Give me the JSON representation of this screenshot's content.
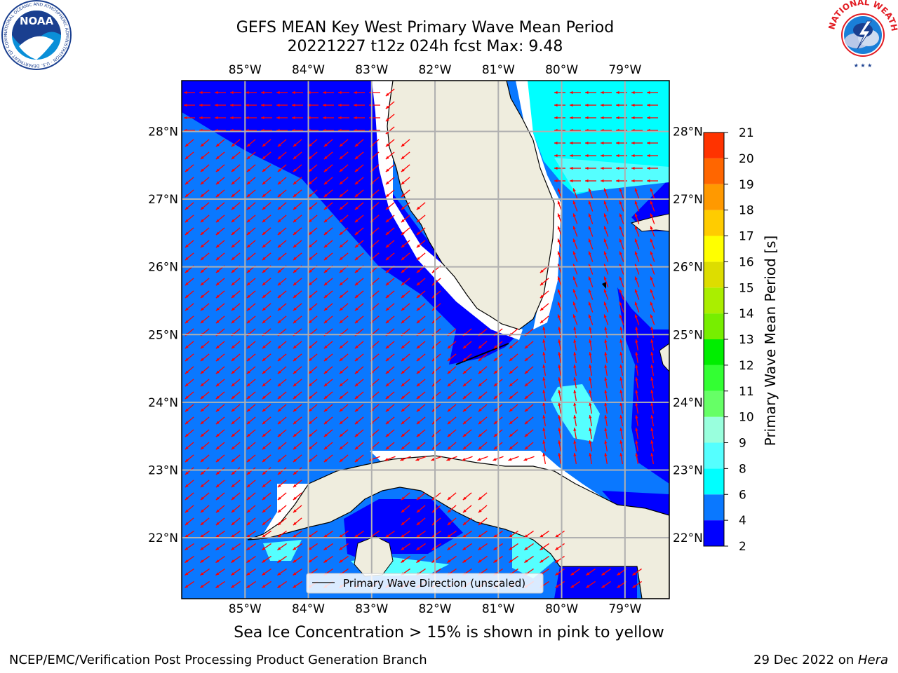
{
  "title": {
    "line1": "GEFS MEAN Key West Primary Wave Mean Period",
    "line2": "20221227 t12z 024h fcst   Max: 9.48"
  },
  "logos": {
    "noaa": {
      "text": "NOAA",
      "ring_text": "NATIONAL OCEANIC AND ATMOSPHERIC ADMINISTRATION · U.S. DEPARTMENT OF COMMERCE",
      "color": "#1a3f8f"
    },
    "nws": {
      "ring_text": "NATIONAL WEATHER SERVICE",
      "color": "#e21c23"
    }
  },
  "map": {
    "lon_labels": [
      "85°W",
      "84°W",
      "83°W",
      "82°W",
      "81°W",
      "80°W",
      "79°W"
    ],
    "lat_labels": [
      "28°N",
      "27°N",
      "26°N",
      "25°N",
      "24°N",
      "23°N",
      "22°N"
    ],
    "lon_range": [
      -86.0,
      -78.3
    ],
    "lat_range": [
      21.1,
      28.75
    ],
    "land_color": "#efedde",
    "arrow_color": "#ff0000",
    "legend_label": "Primary Wave Direction (unscaled)"
  },
  "colorbar": {
    "label": "Primary Wave Mean Period [s]",
    "tick_labels": [
      "2",
      "4",
      "6",
      "8",
      "9",
      "10",
      "11",
      "12",
      "13",
      "14",
      "15",
      "16",
      "17",
      "18",
      "19",
      "20",
      "21"
    ],
    "colors": [
      "#0000ff",
      "#0a78ff",
      "#00ffff",
      "#55ffff",
      "#99ffdd",
      "#66ff66",
      "#33ff33",
      "#00ee00",
      "#77ee00",
      "#aaee00",
      "#dddd00",
      "#ffff00",
      "#ffcc00",
      "#ff9900",
      "#ff6600",
      "#ff3300",
      "#ff0000"
    ]
  },
  "note": "Sea Ice Concentration > 15% is shown in pink to yellow",
  "footer": {
    "left": "NCEP/EMC/Verification Post Processing Product Generation Branch",
    "right_prefix": "29 Dec 2022 on ",
    "right_host": "Hera"
  }
}
